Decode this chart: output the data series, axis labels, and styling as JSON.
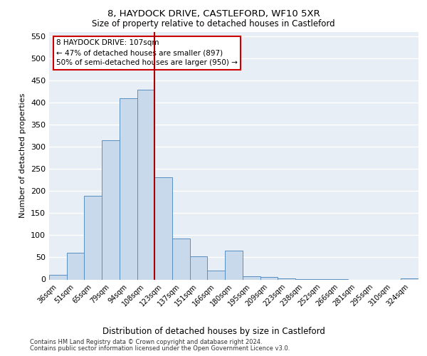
{
  "title1": "8, HAYDOCK DRIVE, CASTLEFORD, WF10 5XR",
  "title2": "Size of property relative to detached houses in Castleford",
  "xlabel": "Distribution of detached houses by size in Castleford",
  "ylabel": "Number of detached properties",
  "categories": [
    "36sqm",
    "51sqm",
    "65sqm",
    "79sqm",
    "94sqm",
    "108sqm",
    "123sqm",
    "137sqm",
    "151sqm",
    "166sqm",
    "180sqm",
    "195sqm",
    "209sqm",
    "223sqm",
    "238sqm",
    "252sqm",
    "266sqm",
    "281sqm",
    "295sqm",
    "310sqm",
    "324sqm"
  ],
  "values": [
    10,
    60,
    190,
    315,
    410,
    430,
    232,
    93,
    53,
    20,
    65,
    8,
    6,
    3,
    1,
    1,
    1,
    0,
    0,
    0,
    2
  ],
  "bar_color": "#c9d9ec",
  "bar_edge_color": "#5a8fc0",
  "vline_color": "#aa0000",
  "annotation_text": "8 HAYDOCK DRIVE: 107sqm\n← 47% of detached houses are smaller (897)\n50% of semi-detached houses are larger (950) →",
  "annotation_box_color": "#ffffff",
  "annotation_box_edge": "#cc0000",
  "ylim": [
    0,
    560
  ],
  "background_color": "#e8eef5",
  "footer1": "Contains HM Land Registry data © Crown copyright and database right 2024.",
  "footer2": "Contains public sector information licensed under the Open Government Licence v3.0."
}
